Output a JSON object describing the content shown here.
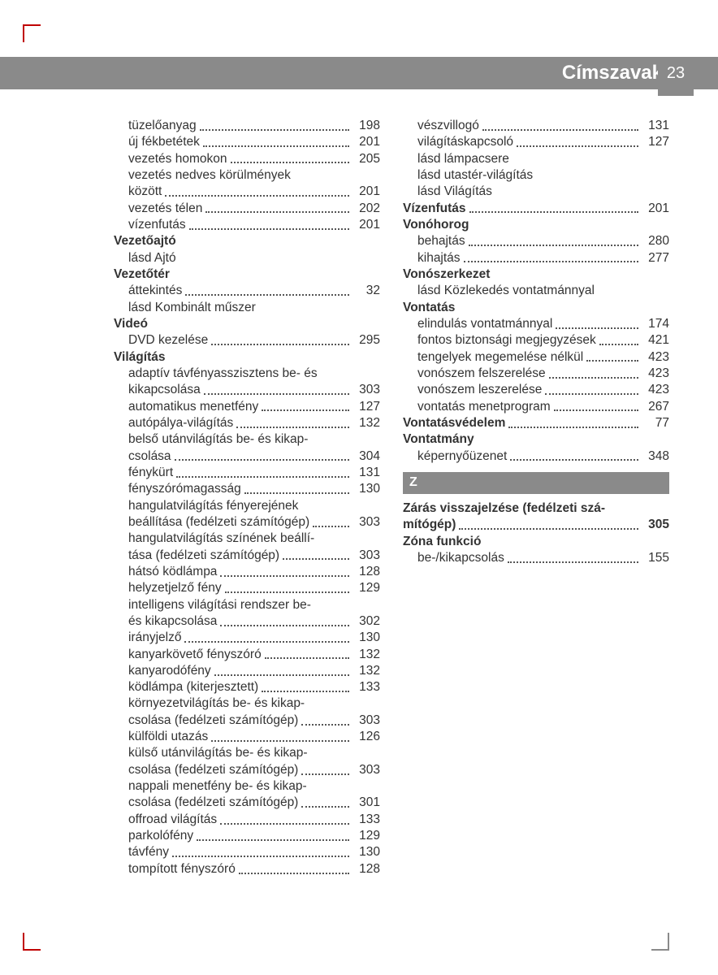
{
  "header": {
    "title": "Címszavak",
    "page_number": "23"
  },
  "colors": {
    "bar": "#8a8a8a",
    "text": "#333333",
    "accent": "#c00000",
    "bg": "#ffffff"
  },
  "left_column": [
    {
      "type": "sub",
      "label": "tüzelőanyag",
      "page": "198"
    },
    {
      "type": "sub",
      "label": "új fékbetétek",
      "page": "201"
    },
    {
      "type": "sub",
      "label": "vezetés homokon",
      "page": "205"
    },
    {
      "type": "sub_multi",
      "lines": [
        "vezetés nedves körülmények",
        "között"
      ],
      "page": "201"
    },
    {
      "type": "sub",
      "label": "vezetés télen",
      "page": "202"
    },
    {
      "type": "sub",
      "label": "vízenfutás",
      "page": "201"
    },
    {
      "type": "head",
      "label": "Vezetőajtó"
    },
    {
      "type": "sub_nodots",
      "label": "lásd Ajtó"
    },
    {
      "type": "head",
      "label": "Vezetőtér"
    },
    {
      "type": "sub",
      "label": "áttekintés",
      "page": "32"
    },
    {
      "type": "sub_nodots",
      "label": "lásd Kombinált műszer"
    },
    {
      "type": "head",
      "label": "Videó"
    },
    {
      "type": "sub",
      "label": "DVD kezelése",
      "page": "295"
    },
    {
      "type": "head",
      "label": "Világítás"
    },
    {
      "type": "sub_multi",
      "lines": [
        "adaptív távfényasszisztens be- és",
        "kikapcsolása"
      ],
      "page": "303"
    },
    {
      "type": "sub",
      "label": "automatikus menetfény",
      "page": "127"
    },
    {
      "type": "sub",
      "label": "autópálya-világítás",
      "page": "132"
    },
    {
      "type": "sub_multi",
      "lines": [
        "belső utánvilágítás be- és kikap-",
        "csolása"
      ],
      "page": "304"
    },
    {
      "type": "sub",
      "label": "fénykürt",
      "page": "131"
    },
    {
      "type": "sub",
      "label": "fényszórómagasság",
      "page": "130"
    },
    {
      "type": "sub_multi",
      "lines": [
        "hangulatvilágítás fényerejének",
        "beállítása (fedélzeti számítógép)"
      ],
      "page": "303"
    },
    {
      "type": "sub_multi",
      "lines": [
        "hangulatvilágítás színének beállí-",
        "tása (fedélzeti számítógép)"
      ],
      "page": "303"
    },
    {
      "type": "sub",
      "label": "hátsó ködlámpa",
      "page": "128"
    },
    {
      "type": "sub",
      "label": "helyzetjelző fény",
      "page": "129"
    },
    {
      "type": "sub_multi",
      "lines": [
        "intelligens világítási rendszer be-",
        "és kikapcsolása"
      ],
      "page": "302"
    },
    {
      "type": "sub",
      "label": "irányjelző",
      "page": "130"
    },
    {
      "type": "sub",
      "label": "kanyarkövető fényszóró",
      "page": "132"
    },
    {
      "type": "sub",
      "label": "kanyarodófény",
      "page": "132"
    },
    {
      "type": "sub",
      "label": "ködlámpa (kiterjesztett)",
      "page": "133"
    },
    {
      "type": "sub_multi",
      "lines": [
        "környezetvilágítás be- és kikap-",
        "csolása (fedélzeti számítógép)"
      ],
      "page": "303"
    },
    {
      "type": "sub",
      "label": "külföldi utazás",
      "page": "126"
    },
    {
      "type": "sub_multi",
      "lines": [
        "külső utánvilágítás be- és kikap-",
        "csolása (fedélzeti számítógép)"
      ],
      "page": "303"
    },
    {
      "type": "sub_multi",
      "lines": [
        "nappali menetfény be- és kikap-",
        "csolása (fedélzeti számítógép)"
      ],
      "page": "301"
    },
    {
      "type": "sub",
      "label": "offroad világítás",
      "page": "133"
    },
    {
      "type": "sub",
      "label": "parkolófény",
      "page": "129"
    },
    {
      "type": "sub",
      "label": "távfény",
      "page": "130"
    },
    {
      "type": "sub",
      "label": "tompított fényszóró",
      "page": "128"
    }
  ],
  "right_column": [
    {
      "type": "sub",
      "label": "vészvillogó",
      "page": "131"
    },
    {
      "type": "sub",
      "label": "világításkapcsoló",
      "page": "127"
    },
    {
      "type": "sub_nodots",
      "label": "lásd lámpacsere"
    },
    {
      "type": "sub_nodots",
      "label": "lásd utastér-világítás"
    },
    {
      "type": "sub_nodots",
      "label": "lásd Világítás"
    },
    {
      "type": "head_entry",
      "label": "Vízenfutás",
      "page": "201"
    },
    {
      "type": "head",
      "label": "Vonóhorog"
    },
    {
      "type": "sub",
      "label": "behajtás",
      "page": "280"
    },
    {
      "type": "sub",
      "label": "kihajtás",
      "page": "277"
    },
    {
      "type": "head",
      "label": "Vonószerkezet"
    },
    {
      "type": "sub_nodots",
      "label": "lásd Közlekedés vontatmánnyal"
    },
    {
      "type": "head",
      "label": "Vontatás"
    },
    {
      "type": "sub",
      "label": "elindulás vontatmánnyal",
      "page": "174"
    },
    {
      "type": "sub",
      "label": "fontos biztonsági megjegyzések",
      "page": "421"
    },
    {
      "type": "sub",
      "label": "tengelyek megemelése nélkül",
      "page": "423"
    },
    {
      "type": "sub",
      "label": "vonószem felszerelése",
      "page": "423"
    },
    {
      "type": "sub",
      "label": "vonószem leszerelése",
      "page": "423"
    },
    {
      "type": "sub",
      "label": "vontatás menetprogram",
      "page": "267"
    },
    {
      "type": "head_entry",
      "label": "Vontatásvédelem",
      "page": "77"
    },
    {
      "type": "head",
      "label": "Vontatmány"
    },
    {
      "type": "sub",
      "label": "képernyőüzenet",
      "page": "348"
    },
    {
      "type": "letter",
      "label": "Z"
    },
    {
      "type": "head_multi",
      "lines": [
        "Zárás visszajelzése (fedélzeti szá-",
        "mítógép)"
      ],
      "page": "305"
    },
    {
      "type": "head",
      "label": "Zóna funkció"
    },
    {
      "type": "sub",
      "label": "be-/kikapcsolás",
      "page": "155"
    }
  ]
}
